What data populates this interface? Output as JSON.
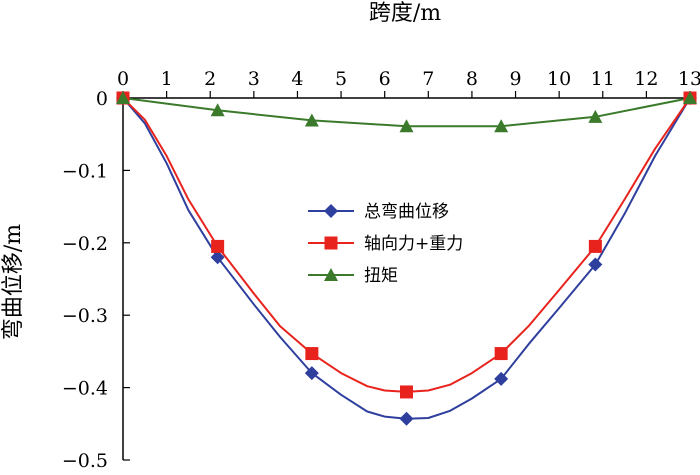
{
  "chart_data": {
    "type": "line",
    "xlabel": "跨度/m",
    "ylabel": "弯曲位移/m",
    "x_axis_position": "top",
    "xlim": [
      0,
      13
    ],
    "ylim": [
      -0.5,
      0
    ],
    "x_ticks": [
      0,
      1,
      2,
      3,
      4,
      5,
      6,
      7,
      8,
      9,
      10,
      11,
      12,
      13
    ],
    "y_ticks": [
      0,
      -0.1,
      -0.2,
      -0.3,
      -0.4,
      -0.5
    ],
    "x_tick_labels": [
      "0",
      "1",
      "2",
      "3",
      "4",
      "5",
      "6",
      "7",
      "8",
      "9",
      "10",
      "11",
      "12",
      "13"
    ],
    "y_tick_labels": [
      "0",
      "−0.1",
      "−0.2",
      "−0.3",
      "−0.4",
      "−0.5"
    ],
    "grid": false,
    "legend_position": "center",
    "series": [
      {
        "name": "总弯曲位移",
        "color": "#2e3f9e",
        "marker": "diamond",
        "marker_x": [
          0,
          2.17,
          4.33,
          6.5,
          8.67,
          10.83,
          13
        ],
        "marker_y": [
          0,
          -0.22,
          -0.38,
          -0.443,
          -0.388,
          -0.23,
          0
        ],
        "x": [
          0,
          0.5,
          1,
          1.5,
          2.17,
          3,
          3.6,
          4.33,
          5,
          5.6,
          6,
          6.5,
          7,
          7.5,
          8,
          8.67,
          9.3,
          10,
          10.83,
          11.5,
          12.2,
          13
        ],
        "y": [
          0,
          -0.035,
          -0.09,
          -0.155,
          -0.22,
          -0.285,
          -0.33,
          -0.38,
          -0.41,
          -0.433,
          -0.44,
          -0.443,
          -0.442,
          -0.432,
          -0.415,
          -0.388,
          -0.34,
          -0.29,
          -0.23,
          -0.16,
          -0.08,
          0
        ]
      },
      {
        "name": "轴向力+重力",
        "color": "#e8231d",
        "marker": "square",
        "marker_x": [
          0,
          2.17,
          4.33,
          6.5,
          8.67,
          10.83,
          13
        ],
        "marker_y": [
          0,
          -0.205,
          -0.353,
          -0.406,
          -0.353,
          -0.205,
          0
        ],
        "x": [
          0,
          0.5,
          1,
          1.5,
          2.17,
          3,
          3.6,
          4.33,
          5,
          5.6,
          6,
          6.5,
          7,
          7.5,
          8,
          8.67,
          9.3,
          10,
          10.83,
          11.5,
          12.2,
          13
        ],
        "y": [
          0,
          -0.03,
          -0.08,
          -0.14,
          -0.205,
          -0.27,
          -0.315,
          -0.353,
          -0.38,
          -0.398,
          -0.404,
          -0.406,
          -0.404,
          -0.396,
          -0.38,
          -0.353,
          -0.315,
          -0.265,
          -0.205,
          -0.14,
          -0.07,
          0
        ]
      },
      {
        "name": "扭矩",
        "color": "#3a7a2a",
        "marker": "triangle",
        "marker_x": [
          0,
          2.17,
          4.33,
          6.5,
          8.67,
          10.83,
          13
        ],
        "marker_y": [
          0,
          -0.017,
          -0.031,
          -0.039,
          -0.039,
          -0.026,
          0
        ],
        "x": [
          0,
          2.17,
          4.33,
          6.5,
          8.67,
          10.83,
          13
        ],
        "y": [
          0,
          -0.017,
          -0.031,
          -0.039,
          -0.039,
          -0.026,
          0
        ]
      }
    ]
  }
}
